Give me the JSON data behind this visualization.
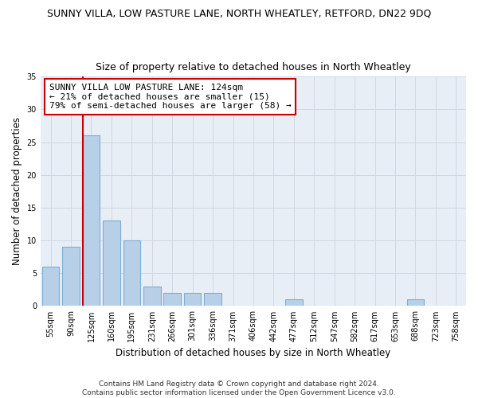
{
  "title": "SUNNY VILLA, LOW PASTURE LANE, NORTH WHEATLEY, RETFORD, DN22 9DQ",
  "subtitle": "Size of property relative to detached houses in North Wheatley",
  "xlabel": "Distribution of detached houses by size in North Wheatley",
  "ylabel": "Number of detached properties",
  "categories": [
    "55sqm",
    "90sqm",
    "125sqm",
    "160sqm",
    "195sqm",
    "231sqm",
    "266sqm",
    "301sqm",
    "336sqm",
    "371sqm",
    "406sqm",
    "442sqm",
    "477sqm",
    "512sqm",
    "547sqm",
    "582sqm",
    "617sqm",
    "653sqm",
    "688sqm",
    "723sqm",
    "758sqm"
  ],
  "values": [
    6,
    9,
    26,
    13,
    10,
    3,
    2,
    2,
    2,
    0,
    0,
    0,
    1,
    0,
    0,
    0,
    0,
    0,
    1,
    0,
    0
  ],
  "bar_color": "#b8cfe8",
  "bar_edge_color": "#7aafd4",
  "red_line_index": 2,
  "annotation_text": "SUNNY VILLA LOW PASTURE LANE: 124sqm\n← 21% of detached houses are smaller (15)\n79% of semi-detached houses are larger (58) →",
  "annotation_box_color": "#ffffff",
  "annotation_box_edge_color": "#cc0000",
  "red_line_color": "#cc0000",
  "ylim": [
    0,
    35
  ],
  "yticks": [
    0,
    5,
    10,
    15,
    20,
    25,
    30,
    35
  ],
  "grid_color": "#d0d8e4",
  "bg_color": "#e8eef5",
  "footer_text": "Contains HM Land Registry data © Crown copyright and database right 2024.\nContains public sector information licensed under the Open Government Licence v3.0.",
  "title_fontsize": 9,
  "subtitle_fontsize": 9,
  "axis_label_fontsize": 8.5,
  "tick_fontsize": 7,
  "annotation_fontsize": 8,
  "footer_fontsize": 6.5
}
